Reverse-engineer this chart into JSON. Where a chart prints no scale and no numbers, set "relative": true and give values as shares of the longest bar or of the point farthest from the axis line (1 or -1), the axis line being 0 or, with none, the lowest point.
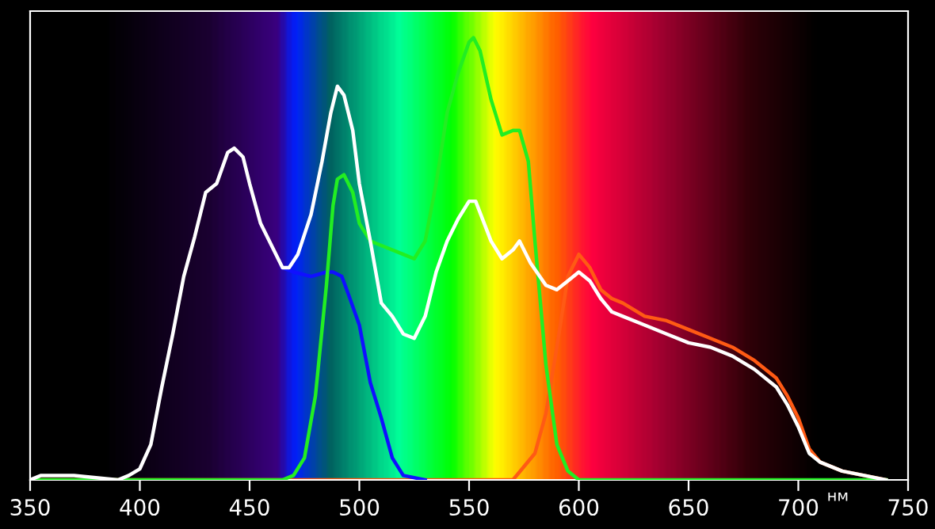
{
  "chart_data": {
    "type": "line",
    "relative": true,
    "xlabel": "нм",
    "xlim": [
      350,
      750
    ],
    "xticks": [
      350,
      400,
      450,
      500,
      550,
      600,
      650,
      700,
      750
    ],
    "grid": false,
    "legend": false,
    "marker": "none",
    "line_style": "solid",
    "series": [
      {
        "color": "#ff5a14",
        "x": [
          350,
          570,
          575,
          580,
          585,
          590,
          595,
          600,
          605,
          610,
          615,
          620,
          630,
          640,
          650,
          660,
          670,
          680,
          690,
          695,
          700,
          705,
          710,
          720,
          740
        ],
        "values": [
          0,
          0,
          0.03,
          0.06,
          0.15,
          0.3,
          0.46,
          0.51,
          0.48,
          0.43,
          0.41,
          0.4,
          0.37,
          0.36,
          0.34,
          0.32,
          0.3,
          0.27,
          0.23,
          0.19,
          0.14,
          0.07,
          0.04,
          0.02,
          0
        ]
      },
      {
        "color": "#1010ff",
        "x": [
          465,
          470,
          478,
          485,
          488,
          492,
          495,
          500,
          505,
          510,
          515,
          520,
          530
        ],
        "values": [
          0.48,
          0.47,
          0.46,
          0.47,
          0.47,
          0.46,
          0.42,
          0.35,
          0.22,
          0.14,
          0.05,
          0.01,
          0
        ]
      },
      {
        "color": "#22ee22",
        "x": [
          350,
          465,
          470,
          475,
          480,
          485,
          488,
          490,
          493,
          497,
          500,
          505,
          510,
          520,
          525,
          530,
          535,
          540,
          545,
          550,
          552,
          555,
          560,
          565,
          570,
          573,
          577,
          580,
          585,
          590,
          595,
          600,
          740
        ],
        "values": [
          0,
          0,
          0.01,
          0.05,
          0.19,
          0.44,
          0.62,
          0.68,
          0.69,
          0.65,
          0.58,
          0.54,
          0.53,
          0.51,
          0.5,
          0.54,
          0.67,
          0.83,
          0.92,
          0.99,
          1,
          0.97,
          0.86,
          0.78,
          0.79,
          0.79,
          0.72,
          0.54,
          0.26,
          0.08,
          0.02,
          0,
          0
        ]
      },
      {
        "color": "#ffffff",
        "x": [
          350,
          355,
          370,
          390,
          395,
          400,
          405,
          410,
          415,
          420,
          425,
          430,
          435,
          440,
          443,
          447,
          450,
          455,
          460,
          465,
          468,
          472,
          478,
          483,
          487,
          490,
          493,
          497,
          500,
          505,
          510,
          515,
          520,
          525,
          530,
          535,
          540,
          545,
          550,
          553,
          560,
          565,
          570,
          573,
          578,
          585,
          590,
          595,
          600,
          605,
          610,
          615,
          620,
          630,
          640,
          650,
          660,
          670,
          680,
          690,
          695,
          700,
          705,
          710,
          720,
          730,
          740
        ],
        "values": [
          0,
          0.01,
          0.01,
          0,
          0.01,
          0.025,
          0.08,
          0.21,
          0.33,
          0.46,
          0.55,
          0.65,
          0.67,
          0.74,
          0.75,
          0.73,
          0.67,
          0.58,
          0.53,
          0.48,
          0.48,
          0.51,
          0.6,
          0.72,
          0.83,
          0.89,
          0.87,
          0.79,
          0.67,
          0.54,
          0.4,
          0.37,
          0.33,
          0.32,
          0.37,
          0.47,
          0.54,
          0.59,
          0.63,
          0.63,
          0.54,
          0.5,
          0.52,
          0.54,
          0.49,
          0.44,
          0.43,
          0.45,
          0.47,
          0.45,
          0.41,
          0.38,
          0.37,
          0.35,
          0.33,
          0.31,
          0.3,
          0.28,
          0.25,
          0.21,
          0.17,
          0.12,
          0.06,
          0.04,
          0.02,
          0.01,
          0
        ]
      }
    ]
  }
}
